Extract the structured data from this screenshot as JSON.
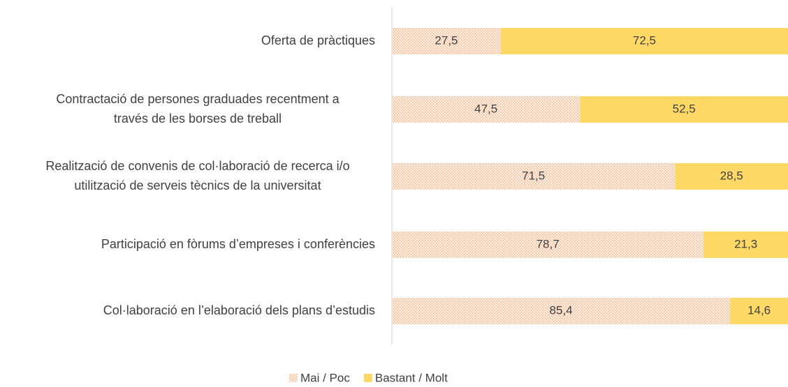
{
  "chart_data": {
    "type": "stacked_barh",
    "categories": [
      [
        "Oferta de pràctiques"
      ],
      [
        "Contractació de persones graduades recentment a",
        "través de les borses de treball"
      ],
      [
        "Realització de convenis de col·laboració de recerca i/o",
        "utilització de serveis tècnics de la universitat"
      ],
      [
        "Participació en fòrums d’empreses i conferències"
      ],
      [
        "Col·laboració en l’elaboració dels plans d’estudis"
      ]
    ],
    "series": [
      {
        "name": "Mai / Poc",
        "color": "#f4b183",
        "pattern": "dots",
        "values": [
          27.5,
          47.5,
          71.5,
          78.7,
          85.4
        ],
        "value_labels": [
          "27,5",
          "47,5",
          "71,5",
          "78,7",
          "85,4"
        ]
      },
      {
        "name": "Bastant / Molt",
        "color": "#ffd966",
        "values": [
          72.5,
          52.5,
          28.5,
          21.3,
          14.6
        ],
        "value_labels": [
          "72,5",
          "52,5",
          "28,5",
          "21,3",
          "14,6"
        ]
      }
    ],
    "xlim": [
      0,
      100
    ],
    "legend": "bottom"
  }
}
